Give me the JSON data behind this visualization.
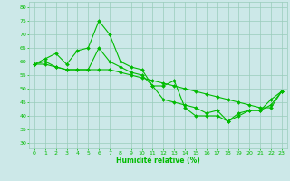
{
  "x": [
    0,
    1,
    2,
    3,
    4,
    5,
    6,
    7,
    8,
    9,
    10,
    11,
    12,
    13,
    14,
    15,
    16,
    17,
    18,
    19,
    20,
    21,
    22,
    23
  ],
  "line1": [
    59,
    61,
    63,
    59,
    64,
    65,
    75,
    70,
    60,
    58,
    57,
    51,
    46,
    45,
    44,
    43,
    41,
    42,
    38,
    41,
    42,
    42,
    46,
    49
  ],
  "line2": [
    59,
    60,
    58,
    57,
    57,
    57,
    65,
    60,
    58,
    56,
    55,
    51,
    51,
    53,
    43,
    40,
    40,
    40,
    38,
    40,
    42,
    42,
    44,
    49
  ],
  "line3": [
    59,
    59,
    58,
    57,
    57,
    57,
    57,
    57,
    56,
    55,
    54,
    53,
    52,
    51,
    50,
    49,
    48,
    47,
    46,
    45,
    44,
    43,
    43,
    49
  ],
  "xlabel": "Humidité relative (%)",
  "ylim": [
    28,
    82
  ],
  "xlim": [
    -0.5,
    23.5
  ],
  "yticks": [
    30,
    35,
    40,
    45,
    50,
    55,
    60,
    65,
    70,
    75,
    80
  ],
  "xticks": [
    0,
    1,
    2,
    3,
    4,
    5,
    6,
    7,
    8,
    9,
    10,
    11,
    12,
    13,
    14,
    15,
    16,
    17,
    18,
    19,
    20,
    21,
    22,
    23
  ],
  "line_color": "#00bb00",
  "bg_color": "#cce8e8",
  "grid_color": "#99ccbb"
}
